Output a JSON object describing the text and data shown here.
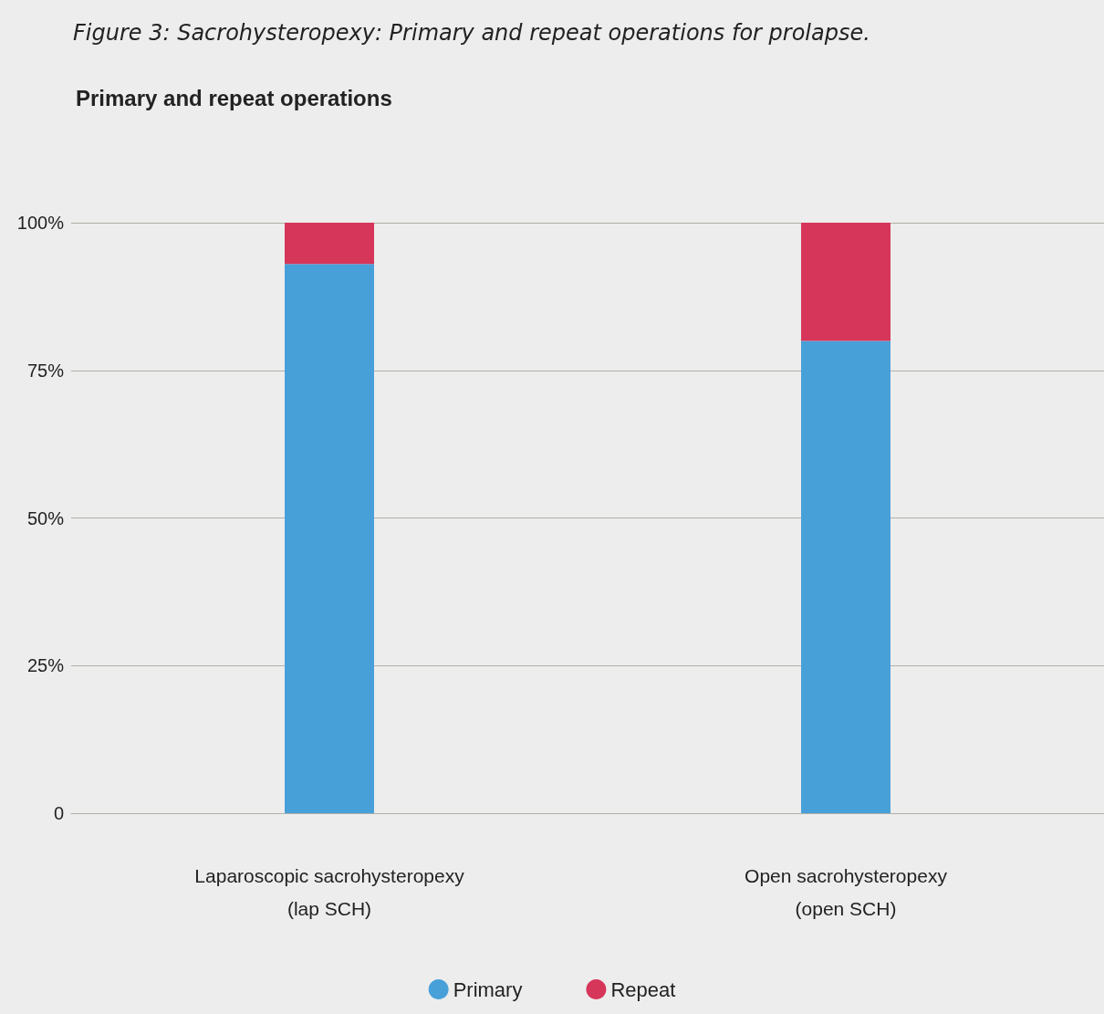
{
  "chart_data": {
    "type": "bar",
    "title": "Figure 3: Sacrohysteropexy: Primary and repeat operations for prolapse.",
    "subtitle": "Primary and repeat operations",
    "categories": [
      "Laparoscopic sacrohysteropexy\n(lap SCH)",
      "Open sacrohysteropexy\n(open SCH)"
    ],
    "series": [
      {
        "name": "Primary",
        "color": "#48a0d9",
        "values": [
          93,
          80
        ]
      },
      {
        "name": "Repeat",
        "color": "#d6365a",
        "values": [
          7,
          20
        ]
      }
    ],
    "stacked": true,
    "ylim": [
      0,
      100
    ],
    "yticks": [
      0,
      {
        "value": 25,
        "label": "25%"
      },
      {
        "value": 50,
        "label": "50%"
      },
      {
        "value": 75,
        "label": "75%"
      },
      {
        "value": 100,
        "label": "100%"
      }
    ],
    "grid": "y",
    "legend": "bottom"
  }
}
